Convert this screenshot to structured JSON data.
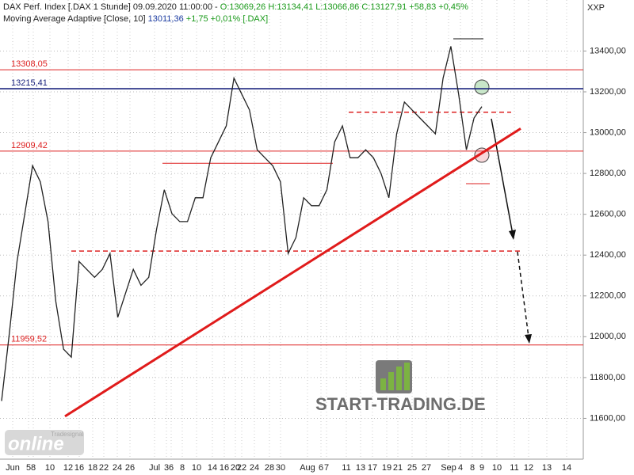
{
  "chart_data": {
    "type": "line",
    "title": "DAX Perf. Index [.DAX  1 Stunde] 09.09.2020 11:00:00 -",
    "ohlc_text": "O:13069,26 H:13134,41 L:13066,86 C:13127,91 +58,83 +0,45%",
    "indicator": "Moving Average Adaptive [Close, 10]",
    "indicator_value": "13011,36",
    "indicator_change": "+1,75 +0,01% [.DAX]",
    "symbol": "XXP",
    "watermark": "START-TRADING.DE",
    "logo": "online",
    "logo_small": "Tradesignal",
    "x_labels": [
      "Jun",
      "5",
      "8",
      "10",
      "12",
      "16",
      "18",
      "22",
      "24",
      "26",
      "Jul",
      "3",
      "6",
      "8",
      "10",
      "14",
      "16",
      "20",
      "22",
      "24",
      "28",
      "30",
      "Aug",
      "6",
      "7",
      "11",
      "13",
      "17",
      "19",
      "21",
      "25",
      "27",
      "Sep",
      "4",
      "8",
      "9",
      "10",
      "11",
      "12",
      "13",
      "14"
    ],
    "series": [
      {
        "name": "DAX",
        "color": "#222222",
        "values": [
          11685,
          12017,
          12369,
          12603,
          12838,
          12759,
          12564,
          12173,
          11939,
          11900,
          12369,
          12330,
          12291,
          12330,
          12408,
          12095,
          12213,
          12330,
          12252,
          12291,
          12525,
          12720,
          12603,
          12564,
          12564,
          12681,
          12681,
          12877,
          12955,
          13033,
          13267,
          13189,
          13111,
          12916,
          12877,
          12838,
          12759,
          12408,
          12486,
          12681,
          12642,
          12642,
          12720,
          12955,
          13033,
          12877,
          12877,
          12916,
          12877,
          12799,
          12681,
          12994,
          13150,
          13111,
          13072,
          13033,
          12994,
          13267,
          13423,
          13189,
          12916,
          13072,
          13128
        ]
      }
    ],
    "levels": [
      {
        "value": 13308.05,
        "label": "13308,05",
        "color": "#dd2222"
      },
      {
        "value": 13215.41,
        "label": "13215,41",
        "color": "#1a237e"
      },
      {
        "value": 12909.42,
        "label": "12909,42",
        "color": "#dd2222"
      },
      {
        "value": 11959.52,
        "label": "11959,52",
        "color": "#dd2222"
      }
    ],
    "support_lines": [
      12420,
      13100,
      12850,
      13460,
      12750
    ],
    "trendline": [
      11610,
      13020
    ],
    "ylim": [
      11400,
      13650
    ],
    "yticks": [
      {
        "value": 11600,
        "label": "11600,00"
      },
      {
        "value": 11800,
        "label": "11800,00"
      },
      {
        "value": 12000,
        "label": "12000,00"
      },
      {
        "value": 12200,
        "label": "12200,00"
      },
      {
        "value": 12400,
        "label": "12400,00"
      },
      {
        "value": 12600,
        "label": "12600,00"
      },
      {
        "value": 12800,
        "label": "12800,00"
      },
      {
        "value": 13000,
        "label": "13000,00"
      },
      {
        "value": 13200,
        "label": "13200,00"
      },
      {
        "value": 13400,
        "label": "13400,00"
      }
    ],
    "grid": true
  }
}
